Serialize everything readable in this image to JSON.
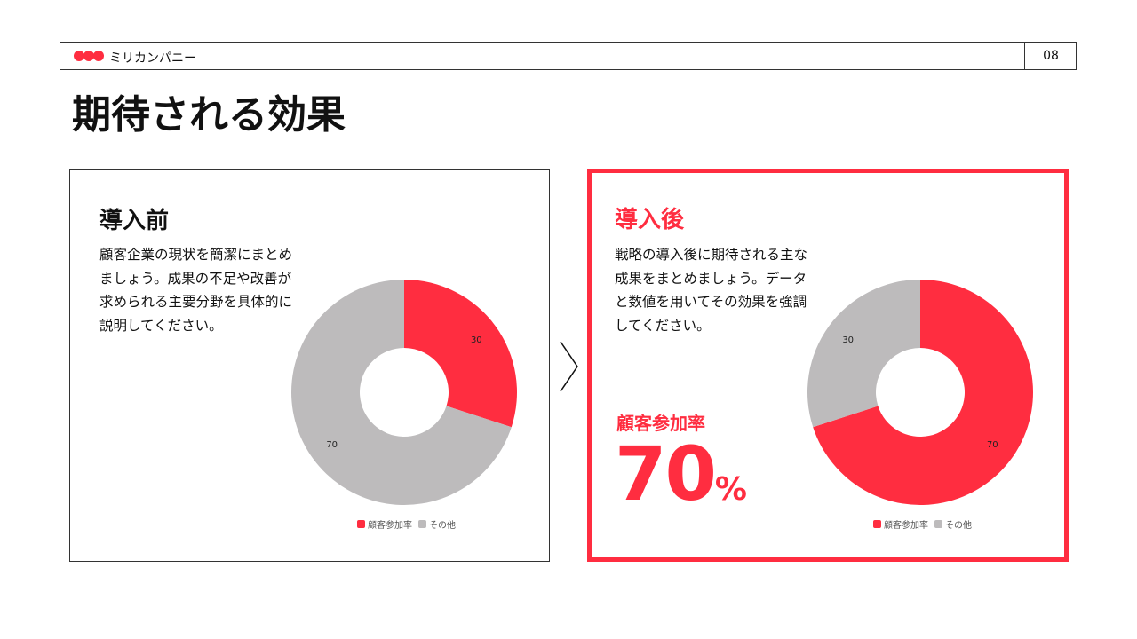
{
  "header": {
    "company": "ミリカンパニー",
    "page_number": "08"
  },
  "title": "期待される効果",
  "colors": {
    "accent": "#ff2d40",
    "other": "#bdbbbc"
  },
  "before": {
    "heading": "導入前",
    "body": "顧客企業の現状を簡潔にまとめましょう。成果の不足や改善が求められる主要分野を具体的に説明してください。"
  },
  "after": {
    "heading": "導入後",
    "body": "戦略の導入後に期待される主な成果をまとめましょう。データと数値を用いてその効果を強調してください。",
    "metric_label": "顧客参加率",
    "metric_value": "70",
    "metric_unit": "%"
  },
  "chart_data": [
    {
      "type": "pie",
      "categories": [
        "顧客参加率",
        "その他"
      ],
      "values": [
        30,
        70
      ],
      "data_labels": [
        "30",
        "70"
      ],
      "legend": [
        "顧客参加率",
        "その他"
      ],
      "legend_position": "bottom"
    },
    {
      "type": "pie",
      "categories": [
        "顧客参加率",
        "その他"
      ],
      "values": [
        70,
        30
      ],
      "data_labels": [
        "70",
        "30"
      ],
      "legend": [
        "顧客参加率",
        "その他"
      ],
      "legend_position": "bottom"
    }
  ]
}
